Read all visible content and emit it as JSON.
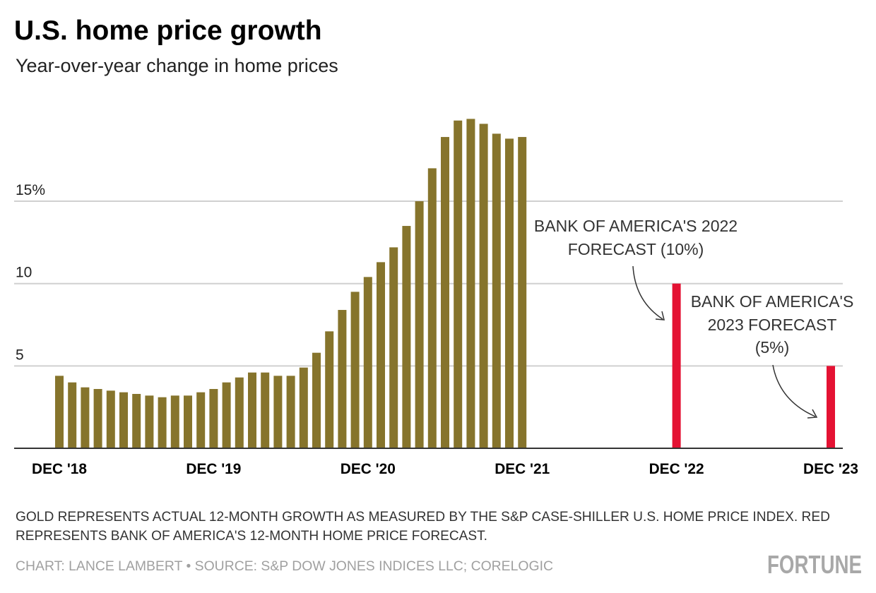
{
  "chart_data": {
    "type": "bar",
    "title": "U.S. home price growth",
    "subtitle": "Year-over-year change in home prices",
    "xlabel": "",
    "ylabel": "",
    "ylim": [
      0,
      20.5
    ],
    "grid": true,
    "y_ticks": [
      {
        "value": 5,
        "label": "5"
      },
      {
        "value": 10,
        "label": "10"
      },
      {
        "value": 15,
        "label": "15%"
      }
    ],
    "x_ticks": [
      {
        "month_index": 0,
        "label": "DEC '18"
      },
      {
        "month_index": 12,
        "label": "DEC '19"
      },
      {
        "month_index": 24,
        "label": "DEC '20"
      },
      {
        "month_index": 36,
        "label": "DEC '21"
      },
      {
        "month_index": 48,
        "label": "DEC '22"
      },
      {
        "month_index": 60,
        "label": "DEC '23"
      }
    ],
    "series": [
      {
        "color": "#86742c",
        "start": "Dec 2018",
        "frequency": "monthly",
        "values": [
          4.4,
          4.0,
          3.7,
          3.6,
          3.5,
          3.4,
          3.3,
          3.2,
          3.1,
          3.2,
          3.2,
          3.4,
          3.6,
          4.0,
          4.3,
          4.6,
          4.6,
          4.4,
          4.4,
          4.9,
          5.8,
          7.1,
          8.4,
          9.5,
          10.4,
          11.3,
          12.2,
          13.5,
          15.0,
          17.0,
          18.9,
          19.9,
          20.0,
          19.7,
          19.1,
          18.8,
          18.9
        ]
      },
      {
        "color": "#e41233",
        "points": [
          {
            "month_index": 48,
            "label": "Dec 2022",
            "value": 10
          },
          {
            "month_index": 60,
            "label": "Dec 2023",
            "value": 5
          }
        ]
      }
    ],
    "annotations": [
      {
        "lines": [
          "BANK OF AMERICA'S 2022",
          "FORECAST (10%)"
        ]
      },
      {
        "lines": [
          "BANK OF AMERICA'S",
          "2023 FORECAST",
          "(5%)"
        ]
      }
    ]
  },
  "footer": {
    "note_lines": [
      "GOLD REPRESENTS ACTUAL 12-MONTH GROWTH AS MEASURED BY THE S&P CASE-SHILLER U.S. HOME PRICE INDEX. RED",
      "REPRESENTS BANK OF AMERICA'S 12-MONTH HOME PRICE FORECAST."
    ],
    "credit": "CHART: LANCE LAMBERT • SOURCE: S&P DOW JONES INDICES LLC; CORELOGIC",
    "logo": "FORTUNE"
  }
}
